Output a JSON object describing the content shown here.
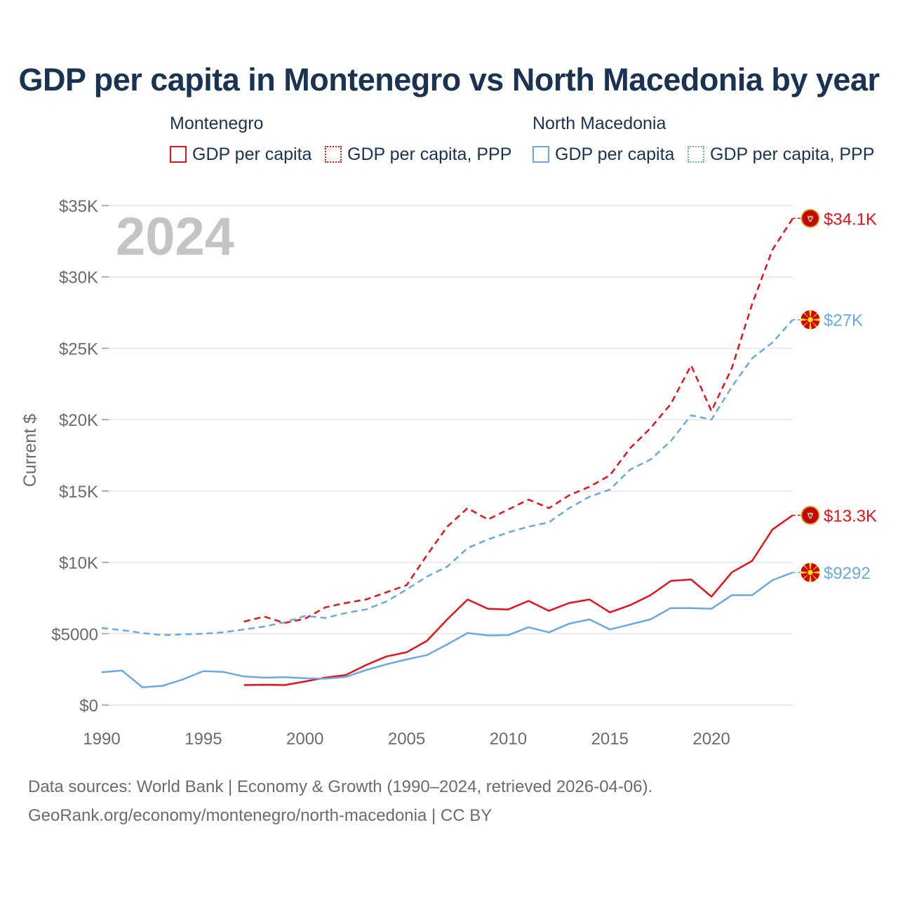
{
  "title": "GDP per capita in Montenegro vs North Macedonia by year",
  "legend": {
    "groups": [
      {
        "name": "Montenegro",
        "items": [
          "GDP per capita",
          "GDP per capita, PPP"
        ]
      },
      {
        "name": "North Macedonia",
        "items": [
          "GDP per capita",
          "GDP per capita, PPP"
        ]
      }
    ]
  },
  "footer": {
    "line1": "Data sources: World Bank | Economy & Growth (1990–2024, retrieved 2026-04-06).",
    "line2": "GeoRank.org/economy/montenegro/north-macedonia | CC BY"
  },
  "colors": {
    "montenegro": "#e8111b",
    "north_macedonia": "#6aa9e0",
    "grid": "#e4e4e4"
  },
  "chart_data": {
    "type": "line",
    "title": "GDP per capita in Montenegro vs North Macedonia by year",
    "xlabel": "",
    "ylabel": "Current $",
    "xlim": [
      1990,
      2024
    ],
    "ylim": [
      0,
      35000
    ],
    "current_year": "2024",
    "x_ticks": [
      1990,
      1995,
      2000,
      2005,
      2010,
      2015,
      2020
    ],
    "x_tick_labels": [
      "1990",
      "1995",
      "2000",
      "2005",
      "2010",
      "2015",
      "2020"
    ],
    "y_ticks": [
      0,
      5000,
      10000,
      15000,
      20000,
      25000,
      30000,
      35000
    ],
    "y_tick_labels": [
      "$0",
      "$5000",
      "$10K",
      "$15K",
      "$20K",
      "$25K",
      "$30K",
      "$35K"
    ],
    "series": [
      {
        "name": "Montenegro GDP per capita",
        "country": "Montenegro",
        "color": "#e8111b",
        "style": "solid",
        "x": [
          1997,
          1998,
          1999,
          2000,
          2001,
          2002,
          2003,
          2004,
          2005,
          2006,
          2007,
          2008,
          2009,
          2010,
          2011,
          2012,
          2013,
          2014,
          2015,
          2016,
          2017,
          2018,
          2019,
          2020,
          2021,
          2022,
          2023,
          2024
        ],
        "values": [
          1400,
          1420,
          1400,
          1650,
          1920,
          2100,
          2800,
          3400,
          3700,
          4500,
          6000,
          7400,
          6750,
          6700,
          7300,
          6600,
          7150,
          7400,
          6500,
          7000,
          7700,
          8700,
          8800,
          7600,
          9300,
          10100,
          12300,
          13300
        ],
        "end_label": "$13.3K"
      },
      {
        "name": "Montenegro GDP per capita, PPP",
        "country": "Montenegro",
        "color": "#e8111b",
        "style": "dashed",
        "x": [
          1997,
          1998,
          1999,
          2000,
          2001,
          2002,
          2003,
          2004,
          2005,
          2006,
          2007,
          2008,
          2009,
          2010,
          2011,
          2012,
          2013,
          2014,
          2015,
          2016,
          2017,
          2018,
          2019,
          2020,
          2021,
          2022,
          2023,
          2024
        ],
        "values": [
          5850,
          6200,
          5750,
          6050,
          6850,
          7150,
          7400,
          7900,
          8400,
          10500,
          12500,
          13800,
          13000,
          13700,
          14400,
          13800,
          14700,
          15300,
          16100,
          18000,
          19400,
          21100,
          23800,
          20600,
          23600,
          28100,
          31900,
          34100
        ],
        "end_label": "$34.1K"
      },
      {
        "name": "North Macedonia GDP per capita",
        "country": "North Macedonia",
        "color": "#6aa9e0",
        "style": "solid",
        "x": [
          1990,
          1991,
          1992,
          1993,
          1994,
          1995,
          1996,
          1997,
          1998,
          1999,
          2000,
          2001,
          2002,
          2003,
          2004,
          2005,
          2006,
          2007,
          2008,
          2009,
          2010,
          2011,
          2012,
          2013,
          2014,
          2015,
          2016,
          2017,
          2018,
          2019,
          2020,
          2021,
          2022,
          2023,
          2024
        ],
        "values": [
          2300,
          2420,
          1250,
          1350,
          1800,
          2380,
          2320,
          2000,
          1920,
          1950,
          1880,
          1850,
          1970,
          2450,
          2850,
          3200,
          3500,
          4250,
          5050,
          4880,
          4900,
          5450,
          5100,
          5700,
          6000,
          5300,
          5650,
          6000,
          6800,
          6800,
          6750,
          7700,
          7700,
          8750,
          9292
        ],
        "end_label": "$9292"
      },
      {
        "name": "North Macedonia GDP per capita, PPP",
        "country": "North Macedonia",
        "color": "#6aa9e0",
        "style": "dashed",
        "x": [
          1990,
          1991,
          1992,
          1993,
          1994,
          1995,
          1996,
          1997,
          1998,
          1999,
          2000,
          2001,
          2002,
          2003,
          2004,
          2005,
          2006,
          2007,
          2008,
          2009,
          2010,
          2011,
          2012,
          2013,
          2014,
          2015,
          2016,
          2017,
          2018,
          2019,
          2020,
          2021,
          2022,
          2023,
          2024
        ],
        "values": [
          5400,
          5250,
          5050,
          4900,
          4950,
          5000,
          5100,
          5300,
          5500,
          5800,
          6250,
          6100,
          6450,
          6700,
          7250,
          8100,
          9000,
          9700,
          11000,
          11600,
          12100,
          12500,
          12800,
          13800,
          14600,
          15100,
          16500,
          17200,
          18500,
          20300,
          20000,
          22300,
          24300,
          25400,
          27000
        ],
        "end_label": "$27K"
      }
    ]
  }
}
